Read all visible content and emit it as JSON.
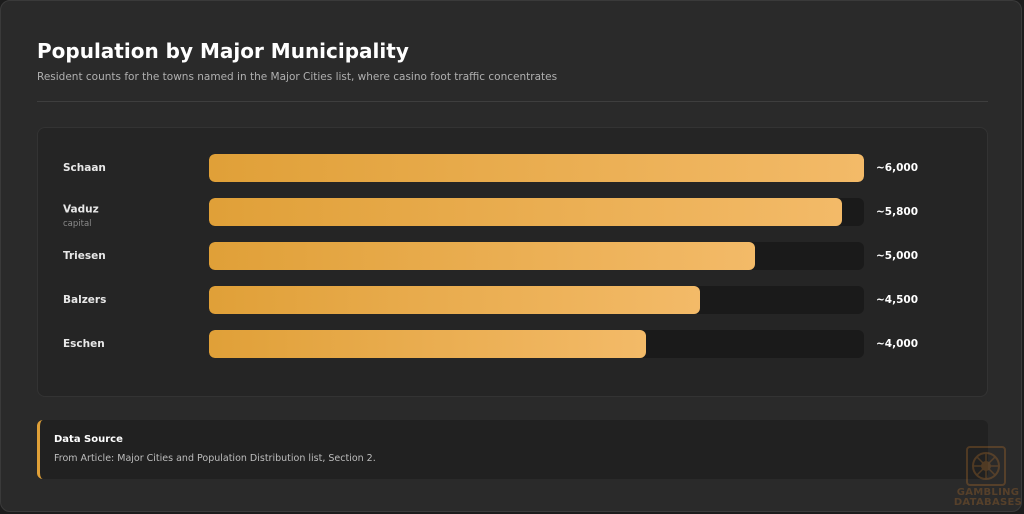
{
  "header": {
    "title": "Population by Major Municipality",
    "subtitle": "Resident counts for the towns named in the Major Cities list, where casino foot traffic concentrates"
  },
  "chart_data": {
    "type": "bar",
    "orientation": "horizontal",
    "categories": [
      "Schaan",
      "Vaduz",
      "Triesen",
      "Balzers",
      "Eschen"
    ],
    "category_notes": [
      "",
      "capital",
      "",
      "",
      ""
    ],
    "values": [
      6000,
      5800,
      5000,
      4500,
      4000
    ],
    "value_labels": [
      "~6,000",
      "~5,800",
      "~5,000",
      "~4,500",
      "~4,000"
    ],
    "xlim": [
      0,
      6000
    ],
    "colors": {
      "bar_start": "#e0a038",
      "bar_end": "#f3ba68",
      "track": "#1a1a1a"
    }
  },
  "source": {
    "title": "Data Source",
    "text": "From Article: Major Cities and Population Distribution list, Section 2."
  },
  "watermark": {
    "line1": "GAMBLING",
    "line2": "DATABASES",
    "icon": "roulette-wheel-icon"
  }
}
